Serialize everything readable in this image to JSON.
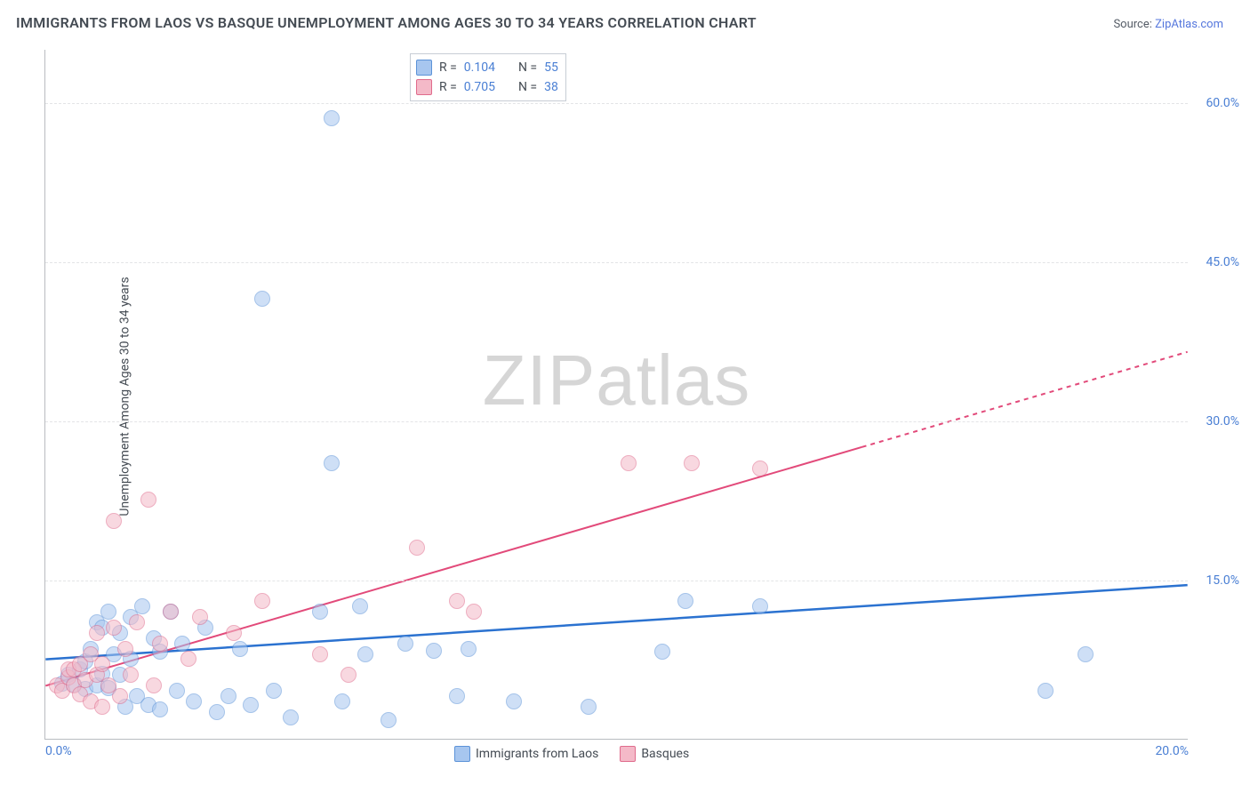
{
  "title": "IMMIGRANTS FROM LAOS VS BASQUE UNEMPLOYMENT AMONG AGES 30 TO 34 YEARS CORRELATION CHART",
  "source_label": "Source:",
  "source_name": "ZipAtlas.com",
  "ylabel": "Unemployment Among Ages 30 to 34 years",
  "watermark_a": "ZIP",
  "watermark_b": "atlas",
  "chart": {
    "type": "scatter",
    "xlim": [
      0,
      20
    ],
    "ylim": [
      0,
      65
    ],
    "ytick_values": [
      15,
      30,
      45,
      60
    ],
    "ytick_labels": [
      "15.0%",
      "30.0%",
      "45.0%",
      "60.0%"
    ],
    "xtick_min_label": "0.0%",
    "xtick_max_label": "20.0%",
    "background_color": "#ffffff",
    "grid_color": "#e3e4e6",
    "axis_color": "#b9bcc0",
    "tick_label_color": "#4a7fd4",
    "marker_radius": 9,
    "marker_opacity": 0.55,
    "series": [
      {
        "name": "Immigrants from Laos",
        "color_fill": "#a7c6ef",
        "color_stroke": "#5c93d8",
        "R": "0.104",
        "N": "55",
        "trend": {
          "x1": 0,
          "y1": 7.5,
          "x2": 20,
          "y2": 14.5,
          "dash_from_x": null,
          "color": "#2b72d0",
          "width": 2.5
        },
        "points": [
          [
            0.3,
            5.2
          ],
          [
            0.4,
            6.0
          ],
          [
            0.5,
            5.1
          ],
          [
            0.6,
            6.5
          ],
          [
            0.7,
            4.7
          ],
          [
            0.7,
            7.3
          ],
          [
            0.8,
            8.5
          ],
          [
            0.9,
            5.0
          ],
          [
            0.9,
            11.0
          ],
          [
            1.0,
            6.1
          ],
          [
            1.0,
            10.5
          ],
          [
            1.1,
            4.8
          ],
          [
            1.1,
            12.0
          ],
          [
            1.2,
            8.0
          ],
          [
            1.3,
            6.0
          ],
          [
            1.3,
            10.0
          ],
          [
            1.4,
            3.0
          ],
          [
            1.5,
            7.5
          ],
          [
            1.5,
            11.5
          ],
          [
            1.6,
            4.0
          ],
          [
            1.7,
            12.5
          ],
          [
            1.8,
            3.2
          ],
          [
            1.9,
            9.5
          ],
          [
            2.0,
            2.8
          ],
          [
            2.0,
            8.2
          ],
          [
            2.2,
            12.0
          ],
          [
            2.3,
            4.5
          ],
          [
            2.4,
            9.0
          ],
          [
            2.6,
            3.5
          ],
          [
            2.8,
            10.5
          ],
          [
            3.0,
            2.5
          ],
          [
            3.2,
            4.0
          ],
          [
            3.4,
            8.5
          ],
          [
            3.6,
            3.2
          ],
          [
            3.8,
            41.5
          ],
          [
            4.0,
            4.5
          ],
          [
            4.3,
            2.0
          ],
          [
            4.8,
            12.0
          ],
          [
            5.0,
            58.5
          ],
          [
            5.0,
            26.0
          ],
          [
            5.2,
            3.5
          ],
          [
            5.5,
            12.5
          ],
          [
            5.6,
            8.0
          ],
          [
            6.0,
            1.8
          ],
          [
            6.3,
            9.0
          ],
          [
            6.8,
            8.3
          ],
          [
            7.2,
            4.0
          ],
          [
            7.4,
            8.5
          ],
          [
            8.2,
            3.5
          ],
          [
            9.5,
            3.0
          ],
          [
            10.8,
            8.2
          ],
          [
            11.2,
            13.0
          ],
          [
            12.5,
            12.5
          ],
          [
            17.5,
            4.5
          ],
          [
            18.2,
            8.0
          ]
        ]
      },
      {
        "name": "Basques",
        "color_fill": "#f4b9c8",
        "color_stroke": "#e06b8c",
        "R": "0.705",
        "N": "38",
        "trend": {
          "x1": 0,
          "y1": 5.0,
          "x2": 20,
          "y2": 36.5,
          "dash_from_x": 14.3,
          "color": "#e24a7a",
          "width": 2
        },
        "points": [
          [
            0.2,
            5.0
          ],
          [
            0.3,
            4.5
          ],
          [
            0.4,
            5.8
          ],
          [
            0.4,
            6.5
          ],
          [
            0.5,
            5.0
          ],
          [
            0.5,
            6.5
          ],
          [
            0.6,
            4.2
          ],
          [
            0.6,
            7.0
          ],
          [
            0.7,
            5.5
          ],
          [
            0.8,
            3.5
          ],
          [
            0.8,
            8.0
          ],
          [
            0.9,
            6.0
          ],
          [
            0.9,
            10.0
          ],
          [
            1.0,
            3.0
          ],
          [
            1.0,
            7.0
          ],
          [
            1.1,
            5.0
          ],
          [
            1.2,
            10.5
          ],
          [
            1.2,
            20.5
          ],
          [
            1.3,
            4.0
          ],
          [
            1.4,
            8.5
          ],
          [
            1.5,
            6.0
          ],
          [
            1.6,
            11.0
          ],
          [
            1.8,
            22.5
          ],
          [
            1.9,
            5.0
          ],
          [
            2.0,
            9.0
          ],
          [
            2.2,
            12.0
          ],
          [
            2.5,
            7.5
          ],
          [
            2.7,
            11.5
          ],
          [
            3.3,
            10.0
          ],
          [
            3.8,
            13.0
          ],
          [
            4.8,
            8.0
          ],
          [
            5.3,
            6.0
          ],
          [
            6.5,
            18.0
          ],
          [
            7.2,
            13.0
          ],
          [
            7.5,
            12.0
          ],
          [
            10.2,
            26.0
          ],
          [
            11.3,
            26.0
          ],
          [
            12.5,
            25.5
          ]
        ]
      }
    ]
  },
  "legend_top_labels": {
    "R": "R  =",
    "N": "N  ="
  },
  "legend_bottom": [
    {
      "label": "Immigrants from Laos",
      "fill": "#a7c6ef",
      "stroke": "#5c93d8"
    },
    {
      "label": "Basques",
      "fill": "#f4b9c8",
      "stroke": "#e06b8c"
    }
  ]
}
